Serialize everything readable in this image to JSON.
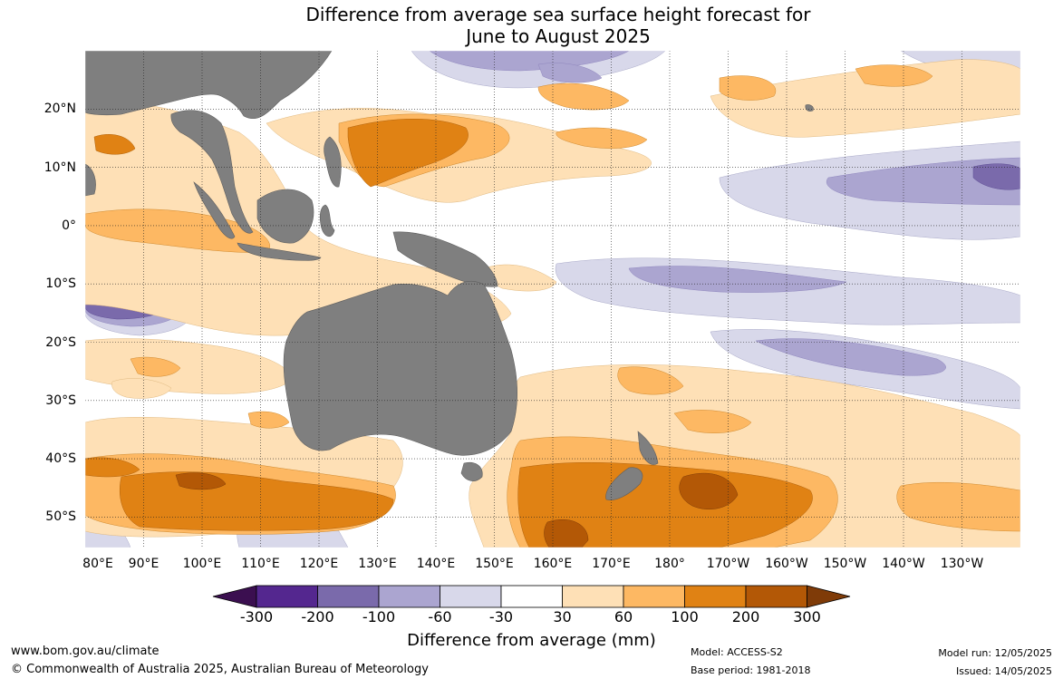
{
  "title": {
    "line1": "Difference from average sea surface height forecast for",
    "line2": "June to August 2025"
  },
  "map": {
    "lat_labels": [
      "20°N",
      "10°N",
      "0°",
      "10°S",
      "20°S",
      "30°S",
      "40°S",
      "50°S"
    ],
    "lon_labels": [
      "80°E",
      "90°E",
      "100°E",
      "110°E",
      "120°E",
      "130°E",
      "140°E",
      "150°E",
      "160°E",
      "170°E",
      "180°",
      "170°W",
      "160°W",
      "150°W",
      "140°W",
      "130°W"
    ],
    "land_color": "#7f7f7f",
    "grid": "dotted"
  },
  "legend": {
    "title": "Difference from average (mm)",
    "tick_labels": [
      "-300",
      "-200",
      "-100",
      "-60",
      "-30",
      "30",
      "60",
      "100",
      "200",
      "300"
    ],
    "colors": {
      "below_min": "#3b0f50",
      "c1": "#54278f",
      "c2": "#7a6aab",
      "c3": "#aba5d0",
      "c4": "#d8d8ea",
      "c5": "#ffffff",
      "c6": "#fee0b6",
      "c7": "#fdb863",
      "c8": "#e08214",
      "c9": "#b35806",
      "above_max": "#7f3b08"
    }
  },
  "footer": {
    "website": "www.bom.gov.au/climate",
    "copyright": "© Commonwealth of Australia 2025, Australian Bureau of Meteorology",
    "model": "Model: ACCESS-S2",
    "base_period": "Base period: 1981-2018",
    "model_run": "Model run: 12/05/2025",
    "issued": "Issued: 14/05/2025"
  }
}
